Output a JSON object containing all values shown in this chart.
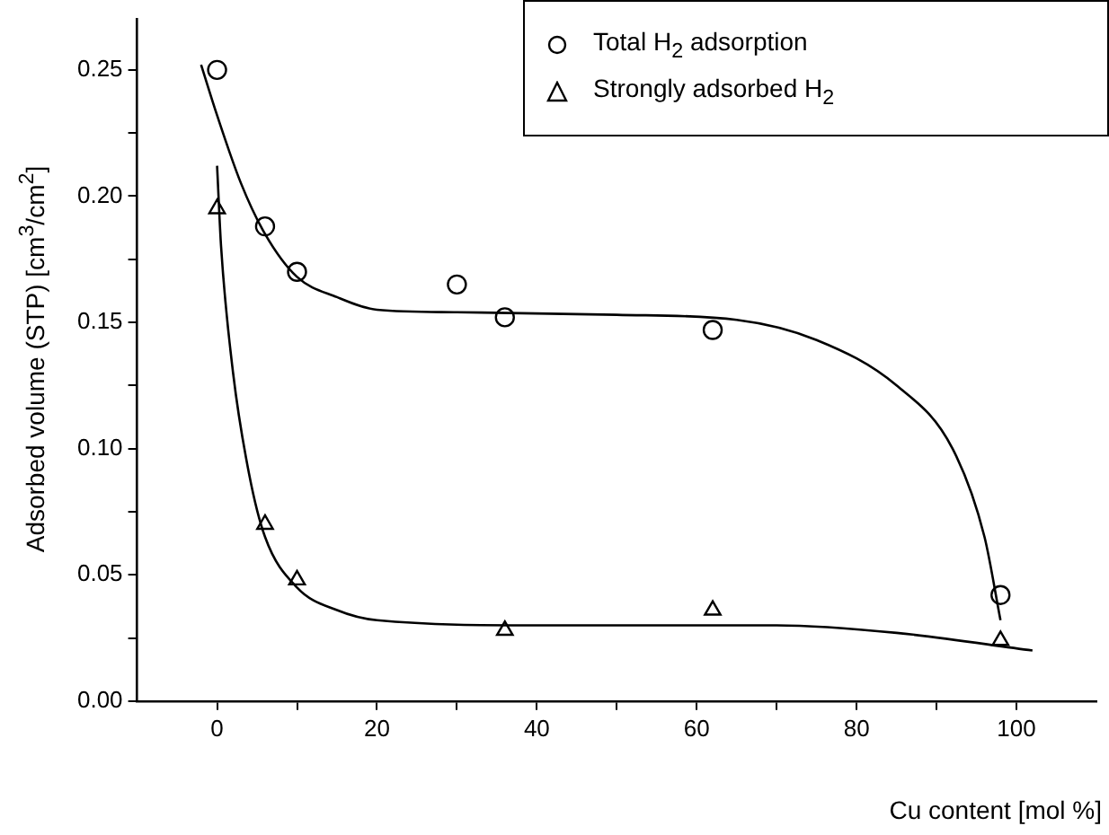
{
  "chart_data": {
    "type": "scatter",
    "xlabel": "Cu content  [mol %]",
    "ylabel": "Adsorbed volume (STP)  [cm$^{3}$/cm$^{2}$]",
    "xlim": [
      -10,
      110
    ],
    "ylim": [
      0,
      0.27
    ],
    "xticks": [
      0,
      {
        "value": 10,
        "label": null
      },
      20,
      {
        "value": 30,
        "label": null
      },
      40,
      {
        "value": 50,
        "label": null
      },
      60,
      {
        "value": 70,
        "label": null
      },
      80,
      {
        "value": 90,
        "label": null
      },
      100
    ],
    "yticks": [
      {
        "value": 0,
        "label": "0.00"
      },
      {
        "value": 0.025,
        "label": null
      },
      {
        "value": 0.05,
        "label": "0.05"
      },
      {
        "value": 0.075,
        "label": null
      },
      {
        "value": 0.1,
        "label": "0.10"
      },
      {
        "value": 0.125,
        "label": null
      },
      {
        "value": 0.15,
        "label": "0.15"
      },
      {
        "value": 0.175,
        "label": null
      },
      {
        "value": 0.2,
        "label": "0.20"
      },
      {
        "value": 0.225,
        "label": null
      },
      {
        "value": 0.25,
        "label": "0.25"
      }
    ],
    "grid": false,
    "legend": "top right",
    "series": [
      {
        "name": "Total H$_{2}$ adsorption",
        "marker": "circle",
        "color": "#000000",
        "x": [
          0,
          6,
          10,
          30,
          36,
          62,
          98
        ],
        "values": [
          0.25,
          0.188,
          0.17,
          0.165,
          0.152,
          0.147,
          0.042
        ]
      },
      {
        "name": "Strongly adsorbed H$_{2}$",
        "marker": "triangle",
        "color": "#000000",
        "x": [
          0,
          6,
          10,
          36,
          62,
          98
        ],
        "values": [
          0.195,
          0.07,
          0.048,
          0.028,
          0.036,
          0.024
        ]
      },
      {
        "type": "line",
        "marker": "none",
        "color": "#000000",
        "x": [
          -2,
          0,
          3,
          6,
          10,
          15,
          20,
          30,
          50,
          65,
          75,
          85,
          92,
          96,
          98
        ],
        "values": [
          0.252,
          0.232,
          0.205,
          0.185,
          0.168,
          0.16,
          0.155,
          0.154,
          0.153,
          0.151,
          0.143,
          0.125,
          0.1,
          0.065,
          0.032
        ]
      },
      {
        "type": "line",
        "marker": "none",
        "color": "#000000",
        "x": [
          0,
          0.5,
          2,
          4,
          6,
          10,
          15,
          20,
          40,
          70,
          85,
          102
        ],
        "values": [
          0.212,
          0.18,
          0.13,
          0.09,
          0.065,
          0.045,
          0.036,
          0.032,
          0.03,
          0.03,
          0.027,
          0.02
        ]
      }
    ]
  }
}
